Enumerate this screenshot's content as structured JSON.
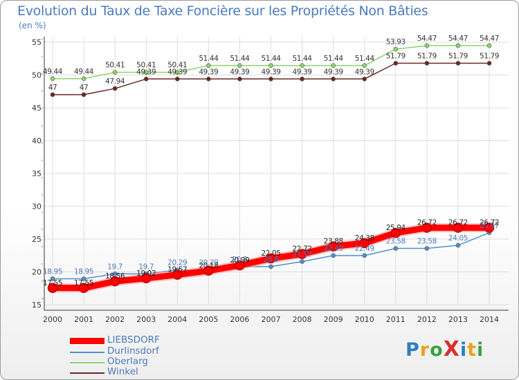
{
  "title": "Evolution du Taux de Taxe Foncière sur les Propriétés Non Bâties",
  "subtitle": "(en %)",
  "chart_data": {
    "type": "line",
    "title": "Evolution du Taux de Taxe Foncière sur les Propriétés Non Bâties",
    "ylabel": "(en %)",
    "xlabel": "",
    "x": [
      "2000",
      "2001",
      "2002",
      "2003",
      "2004",
      "2005",
      "2006",
      "2007",
      "2008",
      "2009",
      "2010",
      "2011",
      "2012",
      "2013",
      "2014"
    ],
    "ylim": [
      15,
      55
    ],
    "yticks": [
      "15",
      "20",
      "25",
      "30",
      "35",
      "40",
      "45",
      "50",
      "55"
    ],
    "grid": true,
    "series": [
      {
        "name": "LIEBSDORF",
        "color": "#ff0000",
        "values": [
          17.55,
          17.55,
          18.56,
          19.02,
          19.57,
          20.18,
          20.99,
          22.05,
          22.72,
          23.88,
          24.38,
          25.94,
          26.72,
          26.72,
          26.72
        ],
        "labels": [
          "17.55",
          "17.55",
          "18.56",
          "19.02",
          "19.57",
          "20.18",
          "20.99",
          "22.05",
          "22.72",
          "23.88",
          "24.38",
          "25.94",
          "26.72",
          "26.72",
          "26.72"
        ]
      },
      {
        "name": "Durlinsdorf",
        "color": "#4f8fcf",
        "values": [
          18.95,
          18.95,
          19.7,
          19.7,
          20.29,
          20.29,
          20.8,
          20.8,
          21.57,
          22.49,
          22.49,
          23.58,
          23.58,
          24.05,
          25.97
        ],
        "labels": [
          "18.95",
          "18.95",
          "19.7",
          "19.7",
          "20.29",
          "20.29",
          "20.8",
          "20.8",
          "21.57",
          "22.49",
          "22.49",
          "23.58",
          "23.58",
          "24.05",
          "25.97"
        ]
      },
      {
        "name": "Oberlarg",
        "color": "#8fd36b",
        "values": [
          49.44,
          49.44,
          50.41,
          50.41,
          50.41,
          51.44,
          51.44,
          51.44,
          51.44,
          51.44,
          51.44,
          53.93,
          54.47,
          54.47,
          54.47
        ],
        "labels": [
          "49.44",
          "49.44",
          "50.41",
          "50.41",
          "50.41",
          "51.44",
          "51.44",
          "51.44",
          "51.44",
          "51.44",
          "51.44",
          "53.93",
          "54.47",
          "54.47",
          "54.47"
        ]
      },
      {
        "name": "Winkel",
        "color": "#6b2626",
        "values": [
          47,
          47,
          47.94,
          49.39,
          49.39,
          49.39,
          49.39,
          49.39,
          49.39,
          49.39,
          49.39,
          51.79,
          51.79,
          51.79,
          51.79
        ],
        "labels": [
          "47",
          "47",
          "47.94",
          "49.39",
          "49.39",
          "49.39",
          "49.39",
          "49.39",
          "49.39",
          "49.39",
          "49.39",
          "51.79",
          "51.79",
          "51.79",
          "51.79"
        ]
      }
    ]
  },
  "legend": [
    {
      "name": "LIEBSDORF",
      "color": "#ff0000"
    },
    {
      "name": "Durlinsdorf",
      "color": "#4f8fcf"
    },
    {
      "name": "Oberlarg",
      "color": "#8fd36b"
    },
    {
      "name": "Winkel",
      "color": "#6b2626"
    }
  ],
  "logo": {
    "text": "ProXiti",
    "letters": [
      "P",
      "r",
      "o",
      "X",
      "i",
      "t",
      "i"
    ],
    "colors": [
      "#2f7fc1",
      "#e8a11c",
      "#3aa142",
      "#d9302c",
      "#2f7fc1",
      "#e8a11c",
      "#3aa142"
    ]
  }
}
